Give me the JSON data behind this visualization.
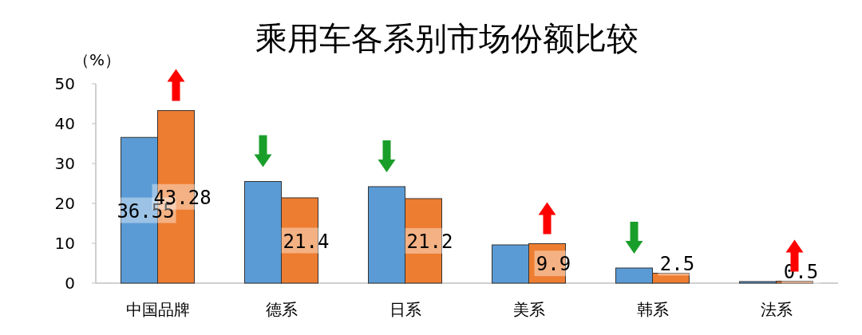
{
  "chart_data": {
    "type": "bar",
    "title": "乘用车各系别市场份额比较",
    "ylabel": "（%）",
    "categories": [
      "中国品牌",
      "德系",
      "日系",
      "美系",
      "韩系",
      "法系"
    ],
    "series": [
      {
        "color": "#5b9bd5",
        "values": [
          36.55,
          25.5,
          24.2,
          9.6,
          3.8,
          0.4
        ],
        "value_labels": [
          "36.55",
          null,
          null,
          null,
          null,
          null
        ]
      },
      {
        "color": "#ed7d31",
        "values": [
          43.28,
          21.4,
          21.2,
          9.9,
          2.5,
          0.5
        ],
        "value_labels": [
          "43.28",
          "21.4",
          "21.2",
          "9.9",
          "2.5",
          "0.5"
        ]
      }
    ],
    "ylim": [
      0,
      50
    ],
    "yticks": [
      0,
      10,
      20,
      30,
      40,
      50
    ],
    "grid": false
  }
}
